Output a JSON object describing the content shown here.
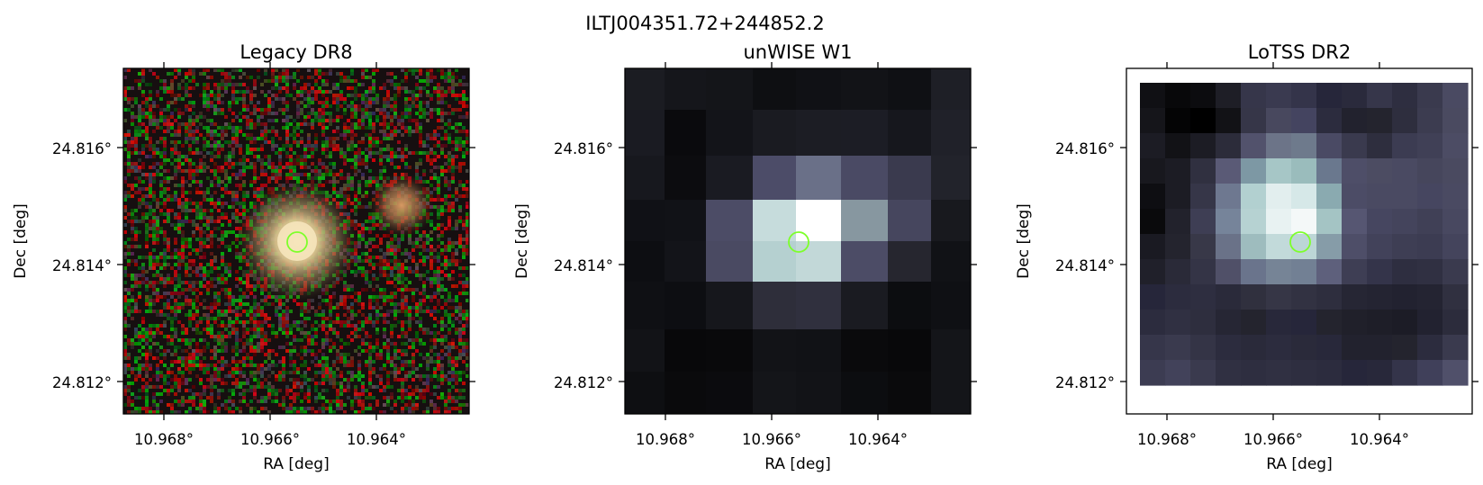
{
  "figure": {
    "suptitle": "ILTJ004351.72+244852.2"
  },
  "panels": [
    {
      "title": "Legacy DR8",
      "xlabel": "RA [deg]",
      "ylabel": "Dec [deg]",
      "xticks": [
        "10.968°",
        "10.966°",
        "10.964°"
      ],
      "yticks": [
        "24.816°",
        "24.814°",
        "24.812°"
      ],
      "image": "noisy optical colour cutout with bright galaxy at centre and smaller galaxy to upper right"
    },
    {
      "title": "unWISE W1",
      "xlabel": "RA [deg]",
      "ylabel": "Dec [deg]",
      "xticks": [
        "10.968°",
        "10.966°",
        "10.964°"
      ],
      "yticks": [
        "24.816°",
        "24.814°",
        "24.812°"
      ],
      "image": "coarse-pixel greyscale infrared cutout with bright source at centre"
    },
    {
      "title": "LoTSS DR2",
      "xlabel": "RA [deg]",
      "ylabel": "Dec [deg]",
      "xticks": [
        "10.968°",
        "10.966°",
        "10.964°"
      ],
      "yticks": [
        "24.816°",
        "24.814°",
        "24.812°"
      ],
      "image": "coarse-pixel bone-colormap radio cutout with bright source at centre"
    }
  ],
  "colors": {
    "marker": "#7dff2a",
    "axes": "#000000",
    "background": "#ffffff"
  }
}
